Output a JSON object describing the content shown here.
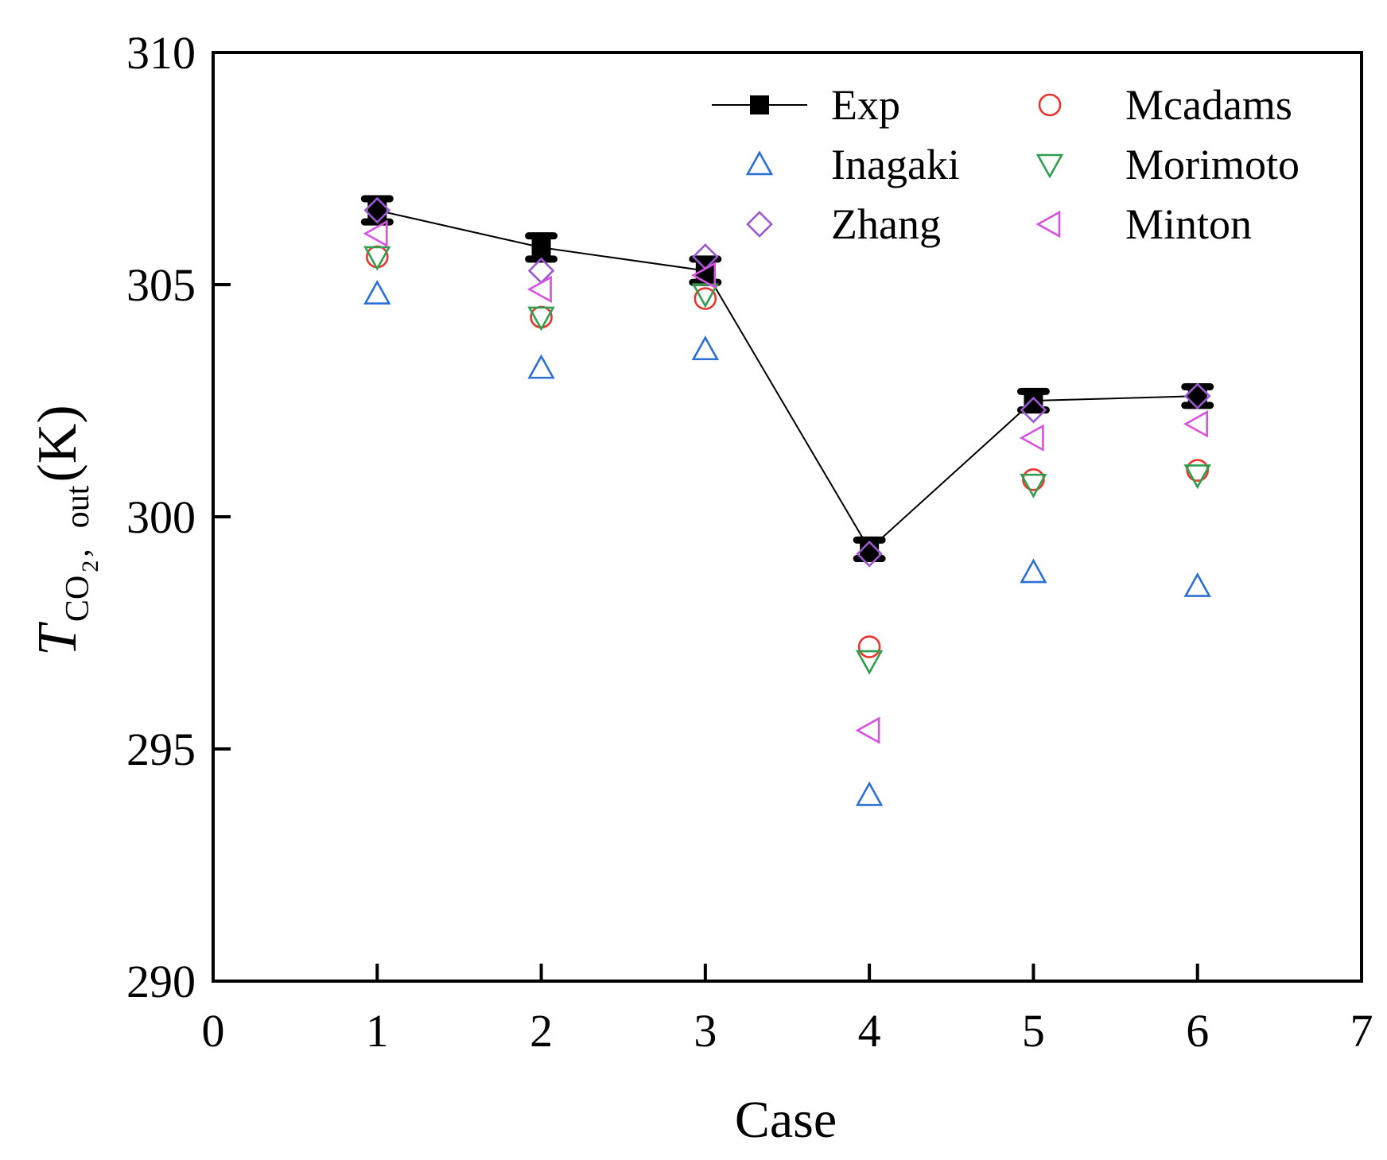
{
  "chart_data": {
    "type": "scatter",
    "xlabel": "Case",
    "ylabel": {
      "symbol": "T",
      "subscript_species": "CO",
      "subscript_index": "2",
      "subscript_separator": ",",
      "subscript_suffix": "out",
      "unit": "(K)"
    },
    "xlim": [
      0,
      7
    ],
    "ylim": [
      290,
      310
    ],
    "x_ticks": [
      "0",
      "1",
      "2",
      "3",
      "4",
      "5",
      "6",
      "7"
    ],
    "y_ticks": [
      "290",
      "295",
      "300",
      "305",
      "310"
    ],
    "x": [
      1,
      2,
      3,
      4,
      5,
      6
    ],
    "series": [
      {
        "name": "Exp",
        "marker": "square",
        "line": true,
        "color": "#000000",
        "values": [
          306.6,
          305.8,
          305.3,
          299.3,
          302.5,
          302.6
        ],
        "error": [
          0.25,
          0.25,
          0.25,
          0.2,
          0.2,
          0.2
        ]
      },
      {
        "name": "Mcadams",
        "marker": "circle",
        "color": "#e8362d",
        "values": [
          305.6,
          304.3,
          304.7,
          297.2,
          300.8,
          301.0
        ]
      },
      {
        "name": "Inagaki",
        "marker": "triangle-up",
        "color": "#2a6fd6",
        "values": [
          304.8,
          303.2,
          303.6,
          294.0,
          298.8,
          298.5
        ]
      },
      {
        "name": "Morimoto",
        "marker": "triangle-down",
        "color": "#2f9e4f",
        "values": [
          305.6,
          304.3,
          304.8,
          296.9,
          300.7,
          300.9
        ]
      },
      {
        "name": "Zhang",
        "marker": "diamond",
        "color": "#9b59d0",
        "values": [
          306.6,
          305.3,
          305.6,
          299.2,
          302.3,
          302.6
        ]
      },
      {
        "name": "Minton",
        "marker": "triangle-left",
        "color": "#d752e0",
        "values": [
          306.1,
          304.9,
          305.2,
          295.4,
          301.7,
          302.0
        ]
      }
    ],
    "legend": {
      "position": "top-right",
      "columns": 2,
      "order": [
        "Exp",
        "Mcadams",
        "Inagaki",
        "Morimoto",
        "Zhang",
        "Minton"
      ]
    },
    "grid": false
  }
}
